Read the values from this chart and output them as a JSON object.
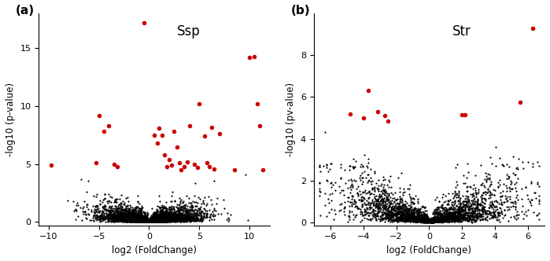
{
  "panel_a": {
    "title": "Ssp",
    "xlabel": "log2 (FoldChange)",
    "ylabel": "-log10 (p-value)",
    "xlim": [
      -11,
      12
    ],
    "ylim": [
      -0.3,
      18
    ],
    "xticks": [
      -10,
      -5,
      0,
      5,
      10
    ],
    "yticks": [
      0,
      5,
      10,
      15
    ],
    "black_seed": 42,
    "n_black": 4000,
    "red_points": [
      [
        -9.8,
        4.9
      ],
      [
        -5.3,
        5.1
      ],
      [
        -5.0,
        9.2
      ],
      [
        -4.5,
        7.8
      ],
      [
        -4.0,
        8.3
      ],
      [
        -3.5,
        5.0
      ],
      [
        -3.2,
        4.8
      ],
      [
        -0.5,
        17.2
      ],
      [
        0.5,
        7.5
      ],
      [
        0.8,
        6.8
      ],
      [
        1.0,
        8.1
      ],
      [
        1.3,
        7.5
      ],
      [
        1.5,
        5.8
      ],
      [
        1.8,
        4.8
      ],
      [
        2.0,
        5.4
      ],
      [
        2.2,
        4.9
      ],
      [
        2.5,
        7.8
      ],
      [
        2.8,
        6.5
      ],
      [
        3.0,
        5.1
      ],
      [
        3.2,
        4.5
      ],
      [
        3.5,
        4.8
      ],
      [
        3.8,
        5.2
      ],
      [
        4.0,
        8.3
      ],
      [
        4.5,
        5.0
      ],
      [
        4.8,
        4.7
      ],
      [
        5.0,
        10.2
      ],
      [
        5.5,
        7.4
      ],
      [
        5.8,
        5.1
      ],
      [
        6.0,
        4.8
      ],
      [
        6.2,
        8.2
      ],
      [
        6.5,
        4.6
      ],
      [
        7.0,
        7.6
      ],
      [
        8.5,
        4.5
      ],
      [
        10.0,
        14.2
      ],
      [
        10.5,
        14.3
      ],
      [
        10.8,
        10.2
      ],
      [
        11.0,
        8.3
      ],
      [
        11.3,
        4.5
      ]
    ]
  },
  "panel_b": {
    "title": "Str",
    "xlabel": "log2 (FoldChange)",
    "ylabel": "-log10 (pv-alue)",
    "xlim": [
      -7,
      7
    ],
    "ylim": [
      -0.15,
      10
    ],
    "xticks": [
      -6,
      -4,
      -2,
      0,
      2,
      4,
      6
    ],
    "yticks": [
      0,
      2,
      4,
      6,
      8
    ],
    "black_seed": 77,
    "n_black": 3000,
    "red_points": [
      [
        -4.8,
        5.2
      ],
      [
        -4.0,
        5.0
      ],
      [
        -3.7,
        6.3
      ],
      [
        -3.1,
        5.3
      ],
      [
        -2.7,
        5.1
      ],
      [
        -2.5,
        4.85
      ],
      [
        2.0,
        5.15
      ],
      [
        2.2,
        5.15
      ],
      [
        5.5,
        5.75
      ],
      [
        6.3,
        9.3
      ]
    ]
  },
  "point_size_black": 2.5,
  "point_size_red": 16,
  "black_color": "#000000",
  "red_color": "#cc0000",
  "bg_color": "#ffffff",
  "panel_label_fontsize": 11,
  "title_fontsize": 12,
  "axis_fontsize": 8.5,
  "tick_fontsize": 8
}
